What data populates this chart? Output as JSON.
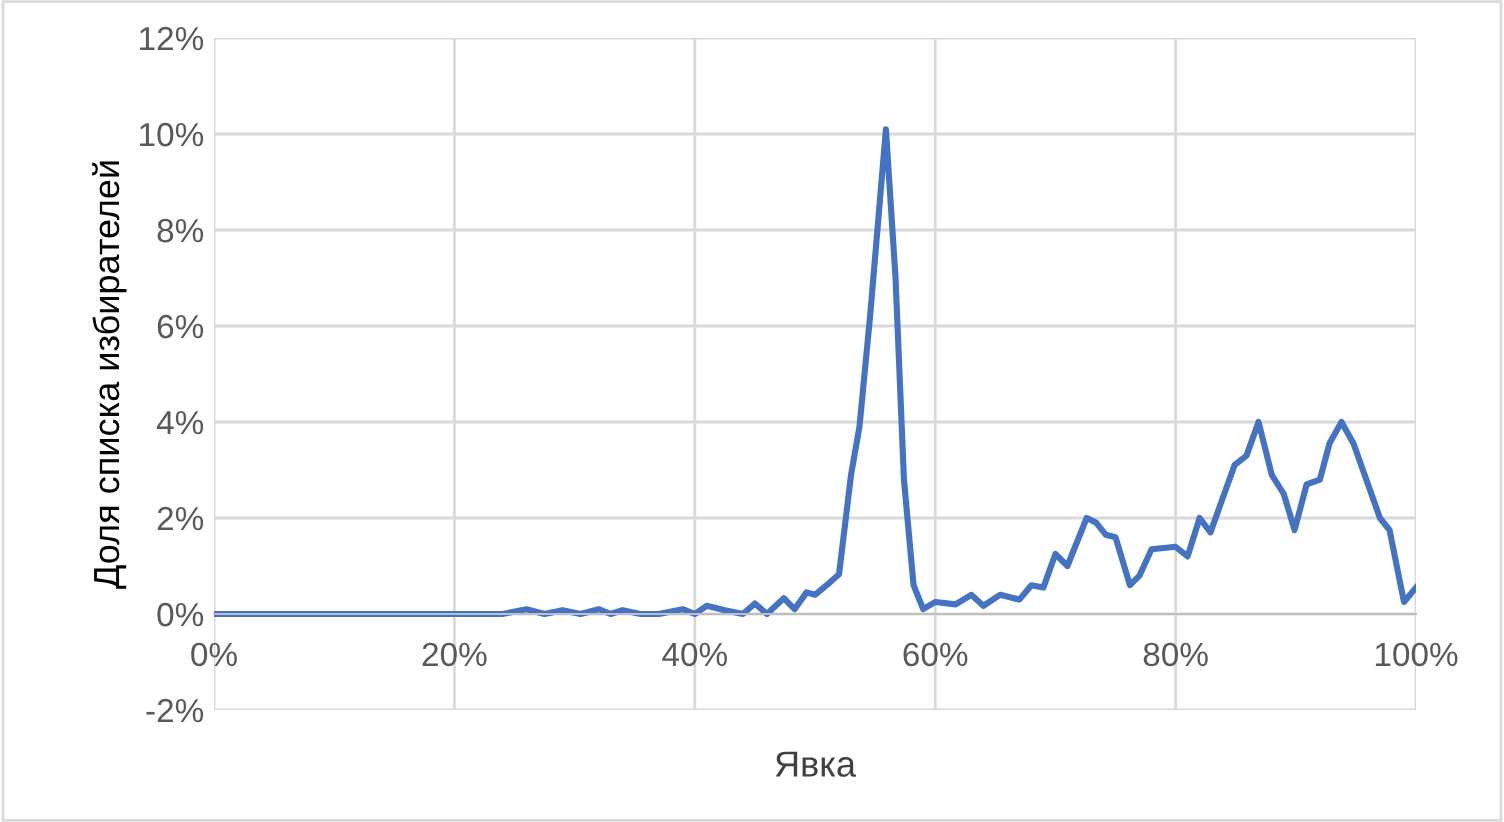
{
  "chart_data": {
    "type": "line",
    "xlabel": "Явка",
    "ylabel": "Доля списка избирателей",
    "x": [
      0,
      5,
      10,
      15,
      20,
      24,
      26,
      27.5,
      29,
      30.5,
      32,
      33,
      34,
      35.5,
      37,
      39,
      40,
      41,
      42.5,
      44,
      45,
      46,
      47.4,
      48.3,
      49.3,
      50,
      51.2,
      52,
      53,
      53.7,
      54.6,
      55.9,
      56.7,
      57.4,
      58.2,
      59,
      60,
      61.7,
      63,
      64,
      65.4,
      67,
      68,
      69,
      70,
      71,
      72.6,
      73.4,
      74.2,
      75,
      76.2,
      77,
      78,
      80,
      81,
      82,
      82.9,
      84.9,
      85.9,
      86.9,
      88,
      89,
      89.9,
      90.9,
      92,
      92.8,
      93.8,
      94.8,
      97,
      97.8,
      99,
      100
    ],
    "series": [
      {
        "color": "#4472c4",
        "values": [
          0,
          0,
          0,
          0,
          0,
          0,
          0.1,
          0,
          0.08,
          0,
          0.1,
          0,
          0.08,
          0,
          0,
          0.1,
          0,
          0.17,
          0.08,
          0,
          0.22,
          0,
          0.33,
          0.1,
          0.45,
          0.4,
          0.65,
          0.83,
          2.9,
          3.9,
          6.25,
          10.1,
          7,
          2.8,
          0.6,
          0.1,
          0.25,
          0.2,
          0.4,
          0.17,
          0.4,
          0.3,
          0.6,
          0.55,
          1.25,
          1.0,
          2.0,
          1.9,
          1.65,
          1.6,
          0.6,
          0.8,
          1.35,
          1.4,
          1.2,
          2.0,
          1.7,
          3.1,
          3.3,
          4.0,
          2.9,
          2.5,
          1.75,
          2.7,
          2.8,
          3.55,
          4.0,
          3.55,
          2.0,
          1.75,
          0.25,
          0.55
        ]
      }
    ],
    "xlim": [
      0,
      100
    ],
    "ylim": [
      -2,
      12
    ],
    "xticks": [
      {
        "value": 0,
        "label": "0%"
      },
      {
        "value": 20,
        "label": "20%"
      },
      {
        "value": 40,
        "label": "40%"
      },
      {
        "value": 60,
        "label": "60%"
      },
      {
        "value": 80,
        "label": "80%"
      },
      {
        "value": 100,
        "label": "100%"
      }
    ],
    "yticks": [
      {
        "value": -2,
        "label": "-2%"
      },
      {
        "value": 0,
        "label": "0%"
      },
      {
        "value": 2,
        "label": "2%"
      },
      {
        "value": 4,
        "label": "4%"
      },
      {
        "value": 6,
        "label": "6%"
      },
      {
        "value": 8,
        "label": "8%"
      },
      {
        "value": 10,
        "label": "10%"
      },
      {
        "value": 12,
        "label": "12%"
      }
    ],
    "grid": true,
    "marker": "none",
    "line_style": "solid",
    "legend": false
  }
}
